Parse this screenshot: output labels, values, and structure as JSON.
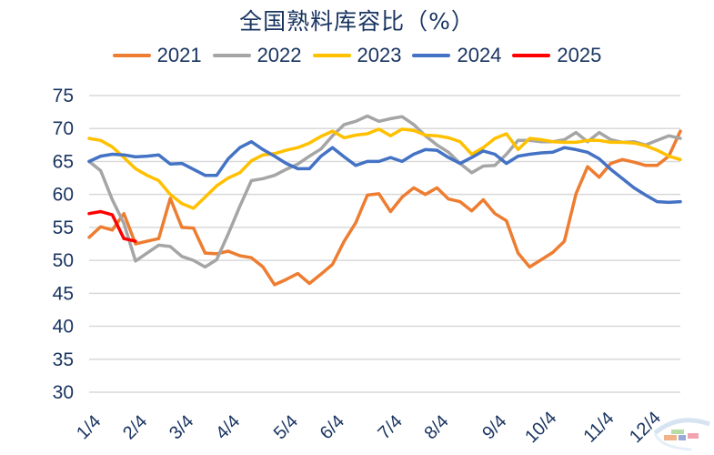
{
  "chart_data": {
    "type": "line",
    "title": "全国熟料库容比（%）",
    "xlabel": "",
    "ylabel": "",
    "ylim": [
      30,
      75
    ],
    "yticks": [
      30,
      35,
      40,
      45,
      50,
      55,
      60,
      65,
      70,
      75
    ],
    "grid": true,
    "legend_position": "top",
    "x_tick_labels": [
      "1/4",
      "2/4",
      "3/4",
      "4/4",
      "5/4",
      "6/4",
      "7/4",
      "8/4",
      "9/4",
      "10/4",
      "11/4",
      "12/4"
    ],
    "x_tick_weeks": [
      0,
      4,
      8,
      12,
      17,
      21,
      26,
      30,
      35,
      39,
      44,
      48
    ],
    "weeks": 52,
    "series": [
      {
        "name": "2021",
        "color": "#ed7d31",
        "values": [
          53.5,
          55.1,
          54.6,
          57.1,
          52.5,
          52.9,
          53.3,
          59.4,
          55.0,
          54.9,
          51.1,
          51.0,
          51.4,
          50.7,
          50.4,
          49.0,
          46.3,
          47.1,
          48.0,
          46.5,
          47.9,
          49.4,
          52.9,
          55.7,
          59.9,
          60.1,
          57.4,
          59.6,
          61.0,
          60.0,
          61.0,
          59.3,
          58.9,
          57.5,
          59.2,
          57.1,
          56.0,
          51.1,
          49.0,
          50.1,
          51.2,
          52.9,
          60.1,
          64.2,
          62.6,
          64.7,
          65.3,
          64.9,
          64.4,
          64.4,
          65.8,
          69.6
        ]
      },
      {
        "name": "2022",
        "color": "#a5a5a5",
        "values": [
          65.0,
          63.6,
          59.2,
          55.6,
          49.9,
          51.1,
          52.3,
          52.1,
          50.6,
          50.0,
          49.0,
          50.1,
          54.0,
          58.2,
          62.1,
          62.4,
          62.9,
          63.8,
          64.6,
          65.8,
          66.9,
          68.9,
          70.6,
          71.1,
          71.9,
          71.1,
          71.5,
          71.8,
          70.6,
          68.9,
          67.5,
          66.4,
          64.7,
          63.3,
          64.3,
          64.4,
          66.1,
          68.2,
          68.2,
          68.0,
          68.0,
          68.3,
          69.4,
          68.0,
          69.4,
          68.3,
          67.9,
          68.0,
          67.5,
          68.2,
          68.9,
          68.5
        ]
      },
      {
        "name": "2023",
        "color": "#ffc000",
        "values": [
          68.5,
          68.2,
          67.2,
          65.6,
          63.9,
          62.9,
          62.1,
          60.0,
          58.6,
          57.9,
          59.6,
          61.3,
          62.5,
          63.3,
          65.1,
          66.0,
          66.2,
          66.7,
          67.1,
          67.8,
          68.8,
          69.6,
          68.6,
          69.0,
          69.2,
          69.9,
          68.9,
          69.9,
          69.7,
          69.0,
          68.9,
          68.6,
          68.0,
          66.1,
          67.1,
          68.5,
          69.2,
          66.8,
          68.5,
          68.3,
          68.0,
          67.9,
          67.9,
          68.2,
          68.2,
          67.9,
          67.9,
          67.8,
          67.4,
          66.7,
          65.8,
          65.3
        ]
      },
      {
        "name": "2024",
        "color": "#4472c4",
        "values": [
          65.0,
          65.8,
          66.1,
          66.0,
          65.7,
          65.8,
          66.0,
          64.6,
          64.7,
          63.8,
          62.9,
          62.9,
          65.4,
          67.1,
          68.0,
          66.8,
          65.8,
          64.7,
          63.9,
          63.9,
          65.8,
          67.1,
          65.7,
          64.4,
          65.0,
          65.0,
          65.6,
          65.0,
          66.1,
          66.8,
          66.7,
          65.6,
          64.7,
          65.6,
          66.6,
          66.1,
          64.7,
          65.8,
          66.1,
          66.3,
          66.4,
          67.1,
          66.8,
          66.4,
          65.4,
          63.8,
          62.4,
          61.0,
          59.9,
          58.9,
          58.8,
          58.9
        ]
      },
      {
        "name": "2025",
        "color": "#ff0000",
        "values": [
          57.1,
          57.4,
          56.9,
          53.3,
          52.9
        ]
      }
    ]
  }
}
